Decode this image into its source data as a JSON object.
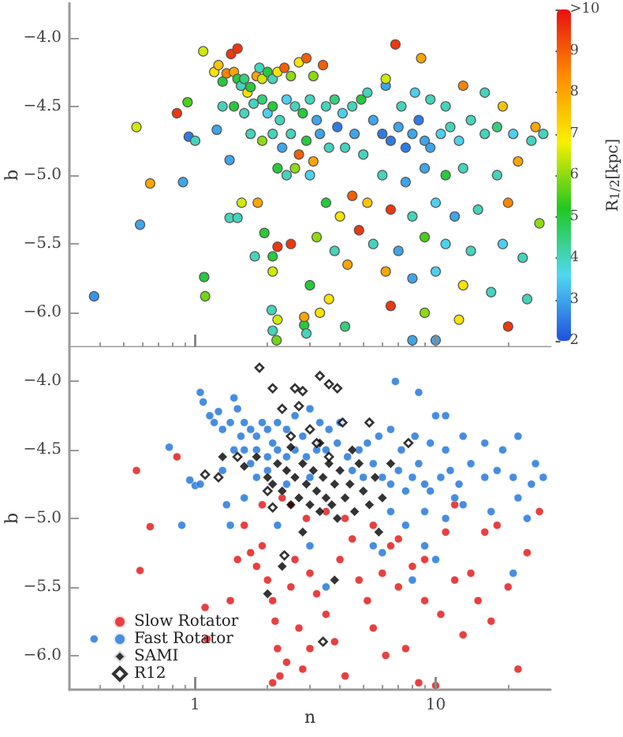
{
  "chart_data": [
    {
      "type": "scatter",
      "ylabel": "b",
      "clabel": "R$_{1/2}$[kpc]",
      "log": "x",
      "marker": "circle",
      "tick_labels": "y",
      "xlim": [
        0.3,
        30
      ],
      "xticks": [
        {
          "value": 1,
          "label": null
        },
        {
          "value": 10,
          "label": null
        }
      ],
      "ylim": [
        -6.25,
        -3.75
      ],
      "yticks": [
        {
          "value": -4,
          "label": "−4.0"
        },
        {
          "value": -4.5,
          "label": "−4.5"
        },
        {
          "value": -5,
          "label": "−5.0"
        },
        {
          "value": -5.5,
          "label": "−5.5"
        },
        {
          "value": -6,
          "label": "−6.0"
        }
      ],
      "clim": [
        2,
        10
      ],
      "cticks": [
        2,
        3,
        4,
        5,
        6,
        7,
        8,
        9,
        {
          "value": 10,
          "label": ">10"
        }
      ],
      "x": [
        0.38,
        0.57,
        0.65,
        0.59,
        0.84,
        0.89,
        0.94,
        0.93,
        1.0,
        1.09,
        1.1,
        1.08,
        1.41,
        1.5,
        1.23,
        1.39,
        1.39,
        1.5,
        1.77,
        2.08,
        2.18,
        2.2,
        2.1,
        2.84,
        2.84,
        2.2,
        2.5,
        2.1,
        2.1,
        1.82,
        1.56,
        1.94,
        1.2,
        1.25,
        1.3,
        1.35,
        1.45,
        1.5,
        1.55,
        1.6,
        1.65,
        1.7,
        1.8,
        1.85,
        1.9,
        2.0,
        2.1,
        2.2,
        2.35,
        2.5,
        2.7,
        2.9,
        3.1,
        3.4,
        1.3,
        1.45,
        1.6,
        1.75,
        1.9,
        2.0,
        2.1,
        2.25,
        2.4,
        2.6,
        2.8,
        3.0,
        3.2,
        3.5,
        3.8,
        4.1,
        4.5,
        4.9,
        1.7,
        1.9,
        2.1,
        2.3,
        2.5,
        2.7,
        2.9,
        3.1,
        3.3,
        3.6,
        3.9,
        4.2,
        4.6,
        5.0,
        2.2,
        2.4,
        2.6,
        3.0,
        5.5,
        6.0,
        6.5,
        7.0,
        7.5,
        8.0,
        8.5,
        9.0,
        9.5,
        10.5,
        11.5,
        12.5,
        14,
        16,
        18,
        21,
        25,
        28,
        5.2,
        6.2,
        7.2,
        8.2,
        9.5,
        11,
        13,
        16,
        19,
        26,
        6.8,
        8.7,
        6.2,
        6.0,
        7.5,
        9,
        11,
        13,
        18,
        22,
        5.2,
        6.5,
        8,
        10,
        12,
        15,
        20,
        27,
        5.5,
        7,
        9,
        11,
        14,
        19,
        23,
        6.2,
        8,
        10,
        13,
        17,
        24,
        6.5,
        9,
        12.5,
        20,
        8,
        10,
        3.5,
        4,
        4.5,
        3.2,
        3.8,
        4.3,
        3.0,
        3.6,
        4.2,
        3.3,
        2.9,
        4.8
      ],
      "values": [
        -5.88,
        -4.65,
        -5.06,
        -5.36,
        -4.55,
        -5.05,
        -4.72,
        -4.47,
        -4.75,
        -5.74,
        -5.88,
        -4.1,
        -4.12,
        -4.08,
        -4.67,
        -4.89,
        -5.31,
        -5.31,
        -5.59,
        -5.98,
        -6.2,
        -6.05,
        -6.13,
        -6.09,
        -6.03,
        -5.52,
        -5.5,
        -5.7,
        -5.59,
        -5.2,
        -5.2,
        -5.42,
        -4.25,
        -4.2,
        -4.32,
        -4.26,
        -4.25,
        -4.3,
        -4.35,
        -4.3,
        -4.4,
        -4.36,
        -4.28,
        -4.22,
        -4.3,
        -4.25,
        -4.3,
        -4.25,
        -4.22,
        -4.28,
        -4.18,
        -4.15,
        -4.28,
        -4.2,
        -4.5,
        -4.5,
        -4.55,
        -4.48,
        -4.45,
        -4.55,
        -4.5,
        -4.6,
        -4.45,
        -4.5,
        -4.55,
        -4.45,
        -4.6,
        -4.5,
        -4.45,
        -4.55,
        -4.5,
        -4.45,
        -4.7,
        -4.75,
        -4.7,
        -4.8,
        -4.7,
        -4.85,
        -4.75,
        -4.9,
        -4.7,
        -4.8,
        -4.65,
        -4.8,
        -4.7,
        -4.85,
        -4.95,
        -5.0,
        -4.95,
        -5.0,
        -4.6,
        -4.7,
        -4.75,
        -4.65,
        -4.8,
        -4.7,
        -4.6,
        -4.75,
        -4.8,
        -4.7,
        -4.65,
        -4.75,
        -4.6,
        -4.7,
        -4.65,
        -4.7,
        -4.75,
        -4.7,
        -4.4,
        -4.35,
        -4.5,
        -4.4,
        -4.45,
        -4.5,
        -4.35,
        -4.4,
        -4.5,
        -4.65,
        -4.05,
        -4.15,
        -4.3,
        -5.0,
        -5.05,
        -4.95,
        -5.0,
        -4.95,
        -5.0,
        -4.9,
        -5.2,
        -5.25,
        -5.3,
        -5.2,
        -5.3,
        -5.25,
        -5.2,
        -5.35,
        -5.5,
        -5.55,
        -5.45,
        -5.5,
        -5.55,
        -5.5,
        -5.6,
        -5.7,
        -5.75,
        -5.7,
        -5.8,
        -5.85,
        -5.9,
        -5.95,
        -6.0,
        -6.05,
        -6.1,
        -6.2,
        -6.2,
        -5.2,
        -5.3,
        -5.15,
        -5.45,
        -5.55,
        -5.65,
        -5.8,
        -5.9,
        -6.1,
        -6.0,
        -6.15,
        -5.4
      ],
      "cvalues": [
        2.8,
        6.5,
        8,
        3,
        9.5,
        3,
        2.5,
        5.5,
        4,
        5,
        5.8,
        6.5,
        9.5,
        9.5,
        3,
        3,
        4,
        4,
        4,
        4,
        5.8,
        6.5,
        4,
        5,
        8,
        9.5,
        9.5,
        6.5,
        5,
        8,
        6.5,
        5,
        7,
        7.5,
        5,
        8.5,
        8,
        5,
        4,
        4.5,
        7,
        5,
        8,
        4,
        6.5,
        5,
        4,
        7,
        9,
        6,
        7,
        9,
        6,
        9,
        4,
        5,
        4,
        4,
        4.5,
        3.5,
        5,
        4,
        3.5,
        4,
        5,
        4,
        3,
        4,
        4.5,
        3.5,
        4,
        5,
        4,
        6,
        4,
        3,
        4,
        9,
        5,
        8,
        3,
        4,
        2.5,
        4,
        3,
        4,
        5,
        4,
        6,
        3.5,
        3,
        2.5,
        2.5,
        3,
        2.5,
        3,
        2.5,
        3,
        3,
        3.5,
        4,
        3.5,
        4,
        4,
        4.5,
        3.5,
        4,
        4,
        4,
        3,
        4,
        3.5,
        4,
        4,
        8.5,
        4,
        7.5,
        8,
        9.5,
        8,
        6.5,
        4,
        3,
        3,
        5,
        4,
        4,
        8,
        7.5,
        9.5,
        4,
        3.5,
        3,
        4,
        8.5,
        6,
        4,
        3,
        5.5,
        3.5,
        4,
        3.5,
        4,
        8,
        3,
        3.5,
        7,
        4,
        4,
        9.5,
        6,
        7,
        9.5,
        3,
        3,
        5,
        7,
        9,
        6,
        4,
        8,
        5,
        7,
        4.5,
        7,
        4,
        9.5
      ]
    },
    {
      "type": "scatter",
      "xlabel": "n",
      "ylabel": "b",
      "log": "x",
      "legend": "bottom left",
      "xlim": [
        0.3,
        30
      ],
      "xticks": [
        1,
        10
      ],
      "ylim": [
        -6.25,
        -3.75
      ],
      "yticks": [
        {
          "value": -4,
          "label": "−4.0"
        },
        {
          "value": -4.5,
          "label": "−4.5"
        },
        {
          "value": -5,
          "label": "−5.0"
        },
        {
          "value": -5.5,
          "label": "−5.5"
        },
        {
          "value": -6,
          "label": "−6.0"
        }
      ],
      "series": [
        {
          "name": "Slow Rotator",
          "color": "#e01010",
          "marker": "circle",
          "x": [
            0.57,
            0.65,
            0.59,
            0.84,
            1.1,
            1.12,
            1.6,
            1.5,
            1.7,
            1.8,
            1.9,
            2.0,
            2.1,
            2.15,
            2.2,
            2.25,
            2.1,
            2.4,
            2.8,
            2.7,
            2.5,
            2.6,
            2.9,
            2.5,
            3.0,
            3.2,
            3.5,
            3.8,
            4.0,
            4.5,
            4.8,
            5.2,
            5.5,
            6.0,
            6.5,
            7,
            7.5,
            8,
            8.5,
            9,
            10,
            10.5,
            11,
            12,
            13,
            14,
            15,
            17,
            18,
            20,
            22,
            24,
            27,
            12,
            16,
            3.5,
            4.2,
            2.3,
            1.9,
            5.5,
            7,
            9,
            6.2,
            4.2,
            3.0,
            1.4
          ],
          "values": [
            -4.65,
            -5.06,
            -5.38,
            -4.55,
            -5.65,
            -5.88,
            -5.05,
            -5.3,
            -5.25,
            -5.35,
            -5.2,
            -5.45,
            -5.6,
            -5.75,
            -5.95,
            -6.15,
            -6.2,
            -6.05,
            -6.1,
            -5.8,
            -5.5,
            -5.3,
            -5.0,
            -4.9,
            -5.4,
            -5.55,
            -5.7,
            -5.9,
            -5.3,
            -5.15,
            -5.45,
            -5.6,
            -5.8,
            -5.4,
            -5.2,
            -5.5,
            -5.95,
            -5.35,
            -6.2,
            -5.6,
            -6.22,
            -5.7,
            -5.1,
            -5.45,
            -5.85,
            -5.4,
            -5.6,
            -5.75,
            -5.05,
            -5.5,
            -6.1,
            -5.25,
            -4.95,
            -4.9,
            -5.1,
            -4.95,
            -5.0,
            -4.85,
            -4.9,
            -5.05,
            -5.15,
            -5.3,
            -6.0,
            -6.15,
            -5.95,
            -5.6
          ]
        },
        {
          "name": "Fast Rotator",
          "color": "#1870d8",
          "marker": "circle",
          "x": [
            0.38,
            1.05,
            1.08,
            1.15,
            1.2,
            1.25,
            1.3,
            1.4,
            1.45,
            1.5,
            1.55,
            1.6,
            1.7,
            1.8,
            1.9,
            2.0,
            2.1,
            2.2,
            2.4,
            2.6,
            2.8,
            3.0,
            3.3,
            3.6,
            4.0,
            0.78,
            0.88,
            0.95,
            1.0,
            1.05,
            1.3,
            1.45,
            1.6,
            1.7,
            1.8,
            2.0,
            2.2,
            2.4,
            2.6,
            2.9,
            3.2,
            3.5,
            3.9,
            4.3,
            4.8,
            5.2,
            1.35,
            1.4,
            1.6,
            1.8,
            2.0,
            2.4,
            3.0,
            4.5,
            5.0,
            5.5,
            6.0,
            6.5,
            7.0,
            7.5,
            8.0,
            8.5,
            9.0,
            9.5,
            10.5,
            11.5,
            12.5,
            14,
            16,
            18,
            21,
            25,
            28,
            5.8,
            6.5,
            7.2,
            8.2,
            9.5,
            11,
            13,
            16,
            19,
            22,
            26,
            6.8,
            8.5,
            10,
            11,
            6.5,
            7.5,
            9,
            11,
            13,
            17,
            22,
            6,
            8,
            10,
            12,
            21,
            24,
            3.5,
            2.2,
            3.0,
            5.5,
            9
          ],
          "values": [
            -5.88,
            -4.08,
            -4.15,
            -4.25,
            -4.3,
            -4.22,
            -4.35,
            -4.3,
            -4.12,
            -4.2,
            -4.4,
            -4.3,
            -4.35,
            -4.4,
            -4.3,
            -4.35,
            -4.45,
            -4.3,
            -4.35,
            -4.25,
            -4.4,
            -4.2,
            -4.3,
            -4.35,
            -4.3,
            -4.48,
            -5.05,
            -4.72,
            -4.76,
            -4.75,
            -4.65,
            -4.5,
            -4.5,
            -4.6,
            -4.5,
            -4.55,
            -4.5,
            -4.55,
            -4.5,
            -4.55,
            -4.5,
            -4.5,
            -4.45,
            -4.55,
            -4.5,
            -4.45,
            -4.9,
            -5.05,
            -4.85,
            -4.7,
            -4.65,
            -4.75,
            -4.7,
            -4.65,
            -4.7,
            -4.6,
            -4.7,
            -4.75,
            -4.65,
            -4.8,
            -4.7,
            -4.6,
            -4.75,
            -4.8,
            -4.7,
            -4.65,
            -4.75,
            -4.6,
            -4.7,
            -4.65,
            -4.7,
            -4.75,
            -4.7,
            -4.4,
            -4.35,
            -4.5,
            -4.4,
            -4.45,
            -4.5,
            -4.4,
            -4.45,
            -4.5,
            -4.4,
            -4.6,
            -4.0,
            -4.08,
            -4.25,
            -4.25,
            -4.95,
            -5.05,
            -4.95,
            -5.0,
            -4.9,
            -4.95,
            -4.85,
            -5.25,
            -5.45,
            -5.3,
            -4.85,
            -5.4,
            -5.0,
            -5.5,
            -5.05,
            -5.2,
            -5.2,
            -5.2
          ]
        },
        {
          "name": "SAMI",
          "color": "#000000",
          "marker": "diamond",
          "x": [
            1.3,
            1.6,
            1.8,
            2.0,
            2.1,
            2.2,
            2.3,
            2.4,
            2.5,
            2.6,
            2.7,
            2.8,
            2.9,
            3.0,
            3.1,
            3.2,
            3.3,
            3.4,
            3.5,
            3.6,
            3.7,
            3.8,
            3.9,
            4.0,
            4.2,
            4.4,
            4.6,
            4.8,
            5.0,
            5.3,
            5.6,
            6.0,
            6.5,
            2.3,
            2.0,
            3.8,
            2.5,
            3.3,
            4.5,
            5.8,
            2.8
          ],
          "values": [
            -4.55,
            -4.62,
            -4.55,
            -4.7,
            -4.75,
            -4.6,
            -4.8,
            -4.65,
            -4.9,
            -4.7,
            -4.85,
            -4.6,
            -4.75,
            -4.9,
            -4.65,
            -4.8,
            -4.95,
            -4.7,
            -4.85,
            -4.6,
            -4.9,
            -4.75,
            -5.0,
            -4.65,
            -4.85,
            -4.75,
            -4.95,
            -4.6,
            -4.8,
            -4.9,
            -4.7,
            -4.85,
            -4.6,
            -5.35,
            -5.55,
            -5.45,
            -4.48,
            -4.45,
            -4.5,
            -5.1,
            -5.1
          ]
        },
        {
          "name": "R12",
          "color": "#000000",
          "marker": "diamond-open",
          "x": [
            1.85,
            2.1,
            2.6,
            2.8,
            2.7,
            2.3,
            2.5,
            1.5,
            1.1,
            1.25,
            2.0,
            2.1,
            2.35,
            3.0,
            3.2,
            3.3,
            3.6,
            3.9,
            4.1,
            5.3,
            7.7,
            3.6,
            3.4
          ],
          "values": [
            -3.9,
            -4.05,
            -4.05,
            -4.07,
            -4.18,
            -4.2,
            -4.4,
            -4.55,
            -4.68,
            -4.7,
            -4.8,
            -4.92,
            -5.27,
            -4.35,
            -4.45,
            -3.96,
            -4.02,
            -4.05,
            -4.3,
            -4.3,
            -4.45,
            -4.55,
            -5.9
          ]
        }
      ]
    }
  ]
}
